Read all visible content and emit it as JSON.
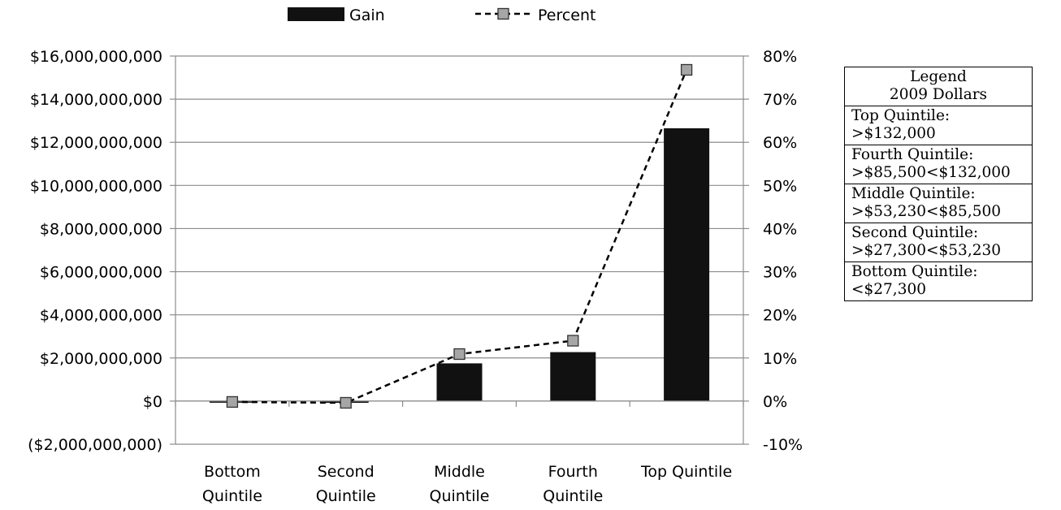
{
  "chart_data": {
    "type": "bar",
    "categories": [
      [
        "Bottom",
        "Quintile"
      ],
      [
        "Second",
        "Quintile"
      ],
      [
        "Middle",
        "Quintile"
      ],
      [
        "Fourth",
        "Quintile"
      ],
      [
        "Top Quintile"
      ]
    ],
    "series": [
      {
        "name": "Gain",
        "type": "bar",
        "axis": "left",
        "color": "#111111",
        "values": [
          -60000000,
          -80000000,
          1750000000,
          2270000000,
          12650000000
        ]
      },
      {
        "name": "Percent",
        "type": "line",
        "axis": "right",
        "style": "dashed",
        "marker": "square",
        "color": "#000000",
        "marker_color": "#a6a6a6",
        "values": [
          -0.2,
          -0.4,
          10.9,
          14.0,
          76.8
        ]
      }
    ],
    "y_left": {
      "ylim": [
        -2000000000,
        16000000000
      ],
      "ticks": [
        "($2,000,000,000)",
        "$0",
        "$2,000,000,000",
        "$4,000,000,000",
        "$6,000,000,000",
        "$8,000,000,000",
        "$10,000,000,000",
        "$12,000,000,000",
        "$14,000,000,000",
        "$16,000,000,000"
      ]
    },
    "y_right": {
      "ylim": [
        -10,
        80
      ],
      "ticks": [
        "-10%",
        "0%",
        "10%",
        "20%",
        "30%",
        "40%",
        "50%",
        "60%",
        "70%",
        "80%"
      ]
    },
    "grid": true,
    "legend": {
      "position": "top",
      "entries": [
        "Gain",
        "Percent"
      ]
    }
  },
  "side_legend": {
    "header": [
      "Legend",
      "2009 Dollars"
    ],
    "rows": [
      [
        "Top Quintile:",
        ">$132,000"
      ],
      [
        "Fourth Quintile:",
        ">$85,500<$132,000"
      ],
      [
        "Middle Quintile:",
        ">$53,230<$85,500"
      ],
      [
        "Second Quintile:",
        ">$27,300<$53,230"
      ],
      [
        "Bottom Quintile:",
        "<$27,300"
      ]
    ]
  }
}
